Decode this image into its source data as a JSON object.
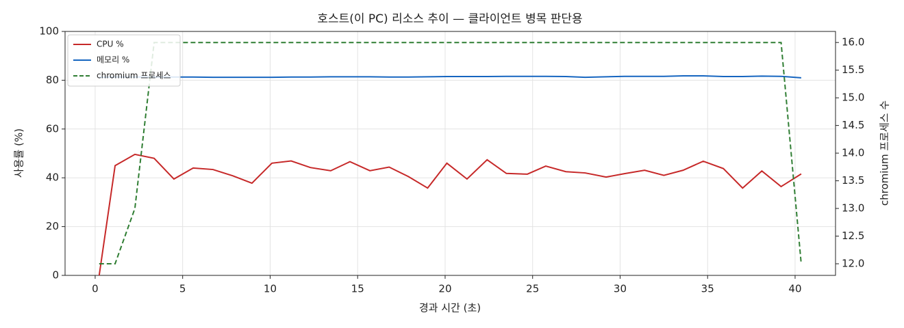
{
  "chart_data": {
    "type": "line",
    "title": "호스트(이 PC) 리소스 추이 — 클라이언트 병목 판단용",
    "xlabel": "경과 시간 (초)",
    "ylabel": "사용률 (%)",
    "y2label": "chromium 프로세스 수",
    "x": [
      0.23,
      1.14,
      2.27,
      3.37,
      4.5,
      5.6,
      6.73,
      7.87,
      8.96,
      10.1,
      11.2,
      12.3,
      13.46,
      14.56,
      15.7,
      16.8,
      17.9,
      19.0,
      20.1,
      21.25,
      22.4,
      23.5,
      24.7,
      25.75,
      26.9,
      28.0,
      29.2,
      30.25,
      31.4,
      32.5,
      33.6,
      34.75,
      35.9,
      37.0,
      38.1,
      39.2,
      40.35
    ],
    "series": [
      {
        "name": "CPU %",
        "color": "#c62828",
        "dashed": false,
        "values": [
          0,
          45,
          49.6,
          48,
          39.5,
          44,
          43.4,
          40.8,
          37.8,
          46,
          46.9,
          44.2,
          42.9,
          46.6,
          42.9,
          44.4,
          40.5,
          35.8,
          46,
          39.5,
          47.4,
          41.8,
          41.5,
          44.8,
          42.5,
          42,
          40.3,
          41.7,
          43.1,
          41,
          43.1,
          46.8,
          43.8,
          35.8,
          42.8,
          36.4,
          41.6
        ]
      },
      {
        "name": "메모리 %",
        "color": "#1565c0",
        "dashed": false,
        "values": [
          81.2,
          81.3,
          81.3,
          81.3,
          81.3,
          81.3,
          81.2,
          81.2,
          81.2,
          81.2,
          81.3,
          81.3,
          81.4,
          81.4,
          81.4,
          81.3,
          81.3,
          81.4,
          81.5,
          81.5,
          81.5,
          81.6,
          81.6,
          81.6,
          81.5,
          81.2,
          81.4,
          81.6,
          81.6,
          81.6,
          81.8,
          81.8,
          81.5,
          81.5,
          81.7,
          81.6,
          81.0
        ]
      },
      {
        "name": "chromium 프로세스",
        "color": "#2e7d32",
        "dashed": true,
        "axis": "y2",
        "values": [
          12,
          12,
          13,
          16,
          16,
          16,
          16,
          16,
          16,
          16,
          16,
          16,
          16,
          16,
          16,
          16,
          16,
          16,
          16,
          16,
          16,
          16,
          16,
          16,
          16,
          16,
          16,
          16,
          16,
          16,
          16,
          16,
          16,
          16,
          16,
          16,
          12
        ]
      }
    ],
    "xlim": [
      -1.72,
      42.31
    ],
    "xticks": [
      0,
      5,
      10,
      15,
      20,
      25,
      30,
      35,
      40
    ],
    "ylim": [
      0,
      100
    ],
    "yticks": [
      0,
      20,
      40,
      60,
      80,
      100
    ],
    "y2lim": [
      11.79,
      16.2
    ],
    "y2ticks": [
      {
        "value": 12,
        "label": "12.0"
      },
      {
        "value": 12.5,
        "label": "12.5"
      },
      {
        "value": 13,
        "label": "13.0"
      },
      {
        "value": 13.5,
        "label": "13.5"
      },
      {
        "value": 14,
        "label": "14.0"
      },
      {
        "value": 14.5,
        "label": "14.5"
      },
      {
        "value": 15,
        "label": "15.0"
      },
      {
        "value": 15.5,
        "label": "15.5"
      },
      {
        "value": 16,
        "label": "16.0"
      }
    ],
    "grid": true,
    "legend": "upper-left"
  }
}
